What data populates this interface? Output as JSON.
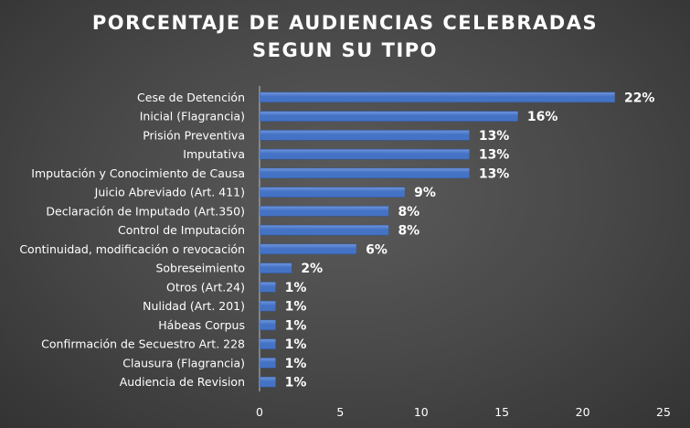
{
  "chart_data": {
    "type": "bar",
    "orientation": "horizontal",
    "title_lines": [
      "PORCENTAJE DE AUDIENCIAS CELEBRADAS",
      "SEGUN SU TIPO"
    ],
    "categories": [
      "Cese de Detención",
      "Inicial (Flagrancia)",
      "Prisión Preventiva",
      "Imputativa",
      "Imputación y Conocimiento de Causa",
      "Juicio Abreviado (Art. 411)",
      "Declaración de Imputado (Art.350)",
      "Control de Imputación",
      "Continuidad, modificación o revocación",
      "Sobreseimiento",
      "Otros (Art.24)",
      "Nulidad (Art. 201)",
      "Hábeas Corpus",
      "Confirmación de Secuestro Art. 228",
      "Clausura (Flagrancia)",
      "Audiencia de Revision"
    ],
    "values": [
      22,
      16,
      13,
      13,
      13,
      9,
      8,
      8,
      6,
      2,
      1,
      1,
      1,
      1,
      1,
      1
    ],
    "data_labels": [
      "22%",
      "16%",
      "13%",
      "13%",
      "13%",
      "9%",
      "8%",
      "8%",
      "6%",
      "2%",
      "1%",
      "1%",
      "1%",
      "1%",
      "1%",
      "1%"
    ],
    "x_ticks": [
      "0",
      "5",
      "10",
      "15",
      "20",
      "25"
    ],
    "xlim": [
      0,
      25
    ],
    "xlabel": "",
    "ylabel": "",
    "grid": false,
    "legend": "none",
    "colors": {
      "bar": "#4472c4",
      "bar_highlight": "#6f95de",
      "text": "#ffffff",
      "axis": "#bfbfbf",
      "background": "#474747"
    }
  }
}
